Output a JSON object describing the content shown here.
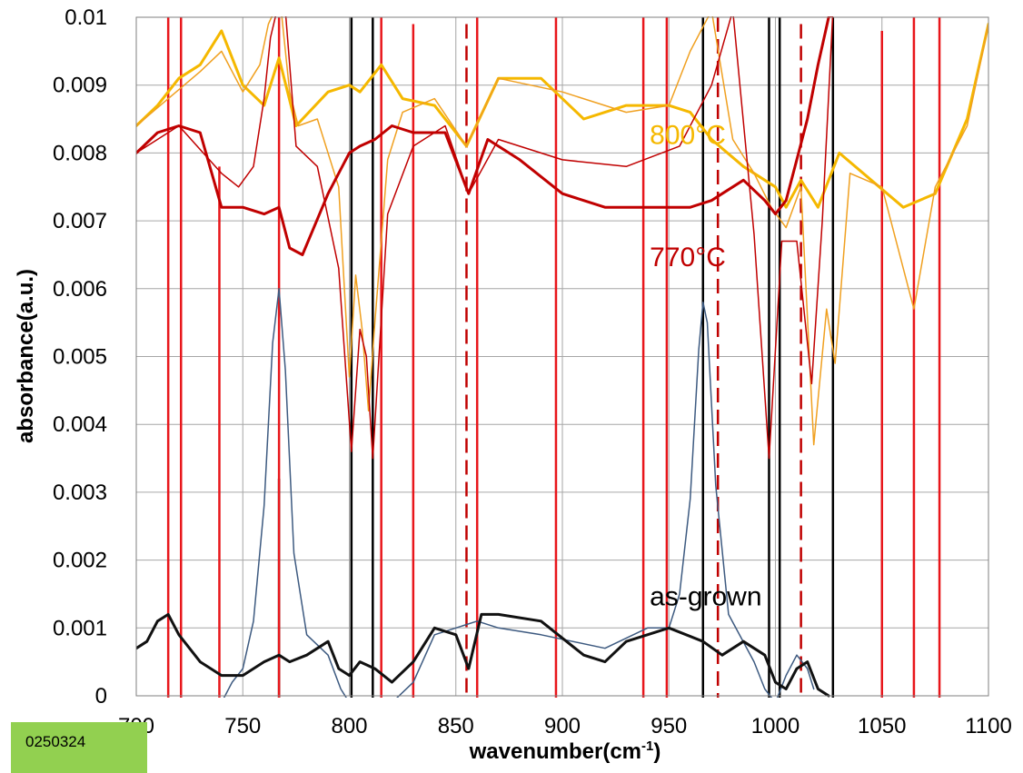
{
  "sample_label": "0250324",
  "chart_data": {
    "type": "line",
    "title": "",
    "xlabel": "wavenumber(cm",
    "xlabel_superscript": "-1",
    "xlabel_suffix": ")",
    "ylabel": "absorbance(a.u.)",
    "xlim": [
      700,
      1100
    ],
    "ylim": [
      0,
      0.01
    ],
    "grid": true,
    "x_ticks": [
      "700",
      "750",
      "800",
      "850",
      "900",
      "950",
      "1000",
      "1050",
      "1100"
    ],
    "y_ticks": [
      "0",
      "0.001",
      "0.002",
      "0.003",
      "0.004",
      "0.005",
      "0.006",
      "0.007",
      "0.008",
      "0.009",
      "0.01"
    ],
    "annotations": [
      {
        "text": "800°C",
        "x": 941,
        "y": 0.00813,
        "color": "#f5b800"
      },
      {
        "text": "770°C",
        "x": 941,
        "y": 0.00633,
        "color": "#c00000"
      },
      {
        "text": "as-grown",
        "x": 941,
        "y": 0.00133,
        "color": "#000000"
      }
    ],
    "vlines": [
      {
        "x": 715,
        "color": "#e8161b",
        "style": "solid",
        "ymax": 0.01
      },
      {
        "x": 721,
        "color": "#e8161b",
        "style": "solid",
        "ymax": 0.01
      },
      {
        "x": 739,
        "color": "#e8161b",
        "style": "solid",
        "ymax": 0.0078
      },
      {
        "x": 767,
        "color": "#000000",
        "style": "solid",
        "ymax": 0.0032
      },
      {
        "x": 767,
        "color": "#e8161b",
        "style": "solid",
        "ymax": 0.01
      },
      {
        "x": 801,
        "color": "#000000",
        "style": "solid",
        "ymax": 0.01
      },
      {
        "x": 811,
        "color": "#000000",
        "style": "solid",
        "ymax": 0.01
      },
      {
        "x": 815,
        "color": "#e8161b",
        "style": "solid",
        "ymax": 0.01
      },
      {
        "x": 830,
        "color": "#e8161b",
        "style": "solid",
        "ymax": 0.0099
      },
      {
        "x": 855,
        "color": "#c00000",
        "style": "dashed",
        "ymax": 0.0099
      },
      {
        "x": 860,
        "color": "#e8161b",
        "style": "solid",
        "ymax": 0.01
      },
      {
        "x": 897,
        "color": "#e8161b",
        "style": "solid",
        "ymax": 0.01
      },
      {
        "x": 938,
        "color": "#e8161b",
        "style": "solid",
        "ymax": 0.01
      },
      {
        "x": 949,
        "color": "#e8161b",
        "style": "solid",
        "ymax": 0.01
      },
      {
        "x": 966,
        "color": "#000000",
        "style": "solid",
        "ymax": 0.01
      },
      {
        "x": 973,
        "color": "#c00000",
        "style": "dashed",
        "ymax": 0.01
      },
      {
        "x": 997,
        "color": "#000000",
        "style": "solid",
        "ymax": 0.01
      },
      {
        "x": 1002,
        "color": "#000000",
        "style": "solid",
        "ymax": 0.01
      },
      {
        "x": 1012,
        "color": "#c00000",
        "style": "dashed",
        "ymax": 0.0099
      },
      {
        "x": 1027,
        "color": "#000000",
        "style": "solid",
        "ymax": 0.01
      },
      {
        "x": 1050,
        "color": "#e8161b",
        "style": "solid",
        "ymax": 0.0098
      },
      {
        "x": 1065,
        "color": "#e8161b",
        "style": "solid",
        "ymax": 0.01
      },
      {
        "x": 1077,
        "color": "#e8161b",
        "style": "solid",
        "ymax": 0.01
      }
    ],
    "series": [
      {
        "color": "#f5b800",
        "width": 3,
        "x": [
          700,
          710,
          720,
          730,
          740,
          750,
          760,
          767,
          775,
          790,
          800,
          805,
          815,
          825,
          840,
          855,
          870,
          890,
          910,
          930,
          950,
          960,
          970,
          985,
          1000,
          1005,
          1012,
          1020,
          1030,
          1045,
          1060,
          1075,
          1090,
          1100
        ],
        "y": [
          0.0084,
          0.0087,
          0.0091,
          0.0093,
          0.0098,
          0.009,
          0.0087,
          0.0094,
          0.0084,
          0.0089,
          0.009,
          0.0089,
          0.0093,
          0.0088,
          0.0087,
          0.0081,
          0.0091,
          0.0091,
          0.0085,
          0.0087,
          0.0087,
          0.0086,
          0.0082,
          0.0078,
          0.0075,
          0.0072,
          0.0076,
          0.0072,
          0.008,
          0.0076,
          0.0072,
          0.0074,
          0.0085,
          0.0099
        ]
      },
      {
        "color": "#f0a020",
        "width": 1.5,
        "x": [
          700,
          715,
          730,
          740,
          750,
          758,
          762,
          765,
          768,
          772,
          776,
          785,
          795,
          800,
          803,
          806,
          809,
          812,
          818,
          825,
          840,
          855,
          870,
          900,
          930,
          950,
          960,
          970,
          980,
          990,
          998,
          1005,
          1012,
          1018,
          1024,
          1028,
          1035,
          1050,
          1065,
          1075,
          1090,
          1100
        ],
        "y": [
          0.0084,
          0.0088,
          0.0092,
          0.0095,
          0.0089,
          0.0093,
          0.0099,
          0.0101,
          0.0101,
          0.0089,
          0.0084,
          0.0085,
          0.0075,
          0.0047,
          0.0062,
          0.0054,
          0.0042,
          0.0055,
          0.0079,
          0.0086,
          0.0088,
          0.0081,
          0.0091,
          0.0089,
          0.0086,
          0.0087,
          0.0095,
          0.0101,
          0.0082,
          0.0077,
          0.0072,
          0.0069,
          0.0075,
          0.0037,
          0.0057,
          0.0049,
          0.0077,
          0.0075,
          0.0057,
          0.0075,
          0.0084,
          0.0099
        ]
      },
      {
        "color": "#c00000",
        "width": 3,
        "x": [
          700,
          710,
          720,
          730,
          740,
          750,
          760,
          767,
          772,
          778,
          790,
          800,
          805,
          812,
          820,
          830,
          845,
          856,
          865,
          880,
          900,
          920,
          940,
          960,
          970,
          975,
          985,
          995,
          1000,
          1005,
          1010,
          1015,
          1020,
          1025,
          1030
        ],
        "y": [
          0.008,
          0.0083,
          0.0084,
          0.0083,
          0.0072,
          0.0072,
          0.0071,
          0.0072,
          0.0066,
          0.0065,
          0.0074,
          0.008,
          0.0081,
          0.0082,
          0.0084,
          0.0083,
          0.0083,
          0.0074,
          0.0082,
          0.0079,
          0.0074,
          0.0072,
          0.0072,
          0.0072,
          0.0073,
          0.0074,
          0.0076,
          0.0073,
          0.0071,
          0.0073,
          0.0079,
          0.0085,
          0.0093,
          0.01,
          0.0101
        ]
      },
      {
        "color": "#c00000",
        "width": 1.5,
        "x": [
          700,
          720,
          740,
          748,
          755,
          760,
          763,
          766,
          770,
          775,
          785,
          795,
          801,
          805,
          808,
          811,
          818,
          830,
          845,
          856,
          870,
          900,
          930,
          955,
          970,
          980,
          990,
          997,
          1003,
          1010,
          1017,
          1022,
          1027
        ],
        "y": [
          0.008,
          0.0084,
          0.0077,
          0.0075,
          0.0078,
          0.0088,
          0.0097,
          0.0101,
          0.0101,
          0.0081,
          0.0078,
          0.0063,
          0.0036,
          0.0054,
          0.005,
          0.0035,
          0.0071,
          0.0081,
          0.0084,
          0.0074,
          0.0082,
          0.0079,
          0.0078,
          0.0081,
          0.009,
          0.0101,
          0.0068,
          0.0035,
          0.0067,
          0.0067,
          0.0046,
          0.007,
          0.0101
        ]
      },
      {
        "color": "#3d5a80",
        "width": 1.5,
        "x": [
          740,
          745,
          750,
          755,
          760,
          764,
          767,
          770,
          774,
          780,
          790,
          796,
          800,
          820,
          830,
          840,
          850,
          860,
          870,
          890,
          920,
          940,
          950,
          955,
          960,
          964,
          966,
          968,
          972,
          978,
          990,
          995,
          1000,
          1005,
          1010,
          1015,
          1018
        ],
        "y": [
          -0.0001,
          0.0002,
          0.0004,
          0.0011,
          0.0028,
          0.0052,
          0.006,
          0.0048,
          0.0021,
          0.0009,
          0.0006,
          0.0001,
          -0.0001,
          -0.0001,
          0.0002,
          0.0009,
          0.001,
          0.0011,
          0.001,
          0.0009,
          0.0007,
          0.001,
          0.001,
          0.0015,
          0.0029,
          0.0051,
          0.0058,
          0.0055,
          0.0031,
          0.0012,
          0.0005,
          0.0001,
          -0.0001,
          0.0003,
          0.0006,
          0.0004,
          0.0001
        ]
      },
      {
        "color": "#111111",
        "width": 3,
        "x": [
          700,
          705,
          710,
          715,
          720,
          730,
          740,
          750,
          760,
          767,
          772,
          780,
          790,
          795,
          800,
          805,
          812,
          820,
          830,
          840,
          850,
          856,
          862,
          870,
          890,
          910,
          920,
          930,
          950,
          966,
          975,
          985,
          995,
          1000,
          1005,
          1010,
          1015,
          1020,
          1025
        ],
        "y": [
          0.0007,
          0.0008,
          0.0011,
          0.0012,
          0.0009,
          0.0005,
          0.0003,
          0.0003,
          0.0005,
          0.0006,
          0.0005,
          0.0006,
          0.0008,
          0.0004,
          0.0003,
          0.0005,
          0.0004,
          0.0002,
          0.0005,
          0.001,
          0.0009,
          0.0004,
          0.0012,
          0.0012,
          0.0011,
          0.0006,
          0.0005,
          0.0008,
          0.001,
          0.0008,
          0.0006,
          0.0008,
          0.0006,
          0.0002,
          0.0001,
          0.0004,
          0.0005,
          0.0001,
          0.0
        ]
      }
    ]
  }
}
